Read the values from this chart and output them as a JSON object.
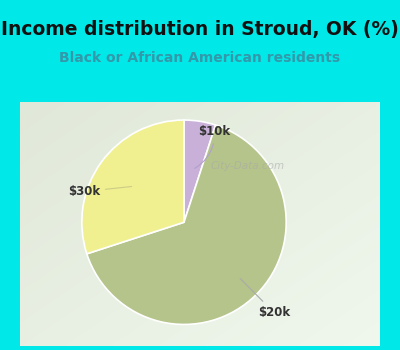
{
  "title": "Income distribution in Stroud, OK (%)",
  "subtitle": "Black or African American residents",
  "slices": [
    {
      "label": "$10k",
      "value": 5,
      "color": "#c9b0d8"
    },
    {
      "label": "$20k",
      "value": 65,
      "color": "#b5c48a"
    },
    {
      "label": "$30k",
      "value": 30,
      "color": "#f0f090"
    }
  ],
  "background_cyan": "#00e8e8",
  "background_chart_tl": "#e8f5f0",
  "background_chart_br": "#d0e8c8",
  "title_color": "#111111",
  "subtitle_color": "#3399aa",
  "title_fontsize": 13.5,
  "subtitle_fontsize": 10,
  "label_fontsize": 8.5,
  "label_color": "#333333",
  "startangle": 90,
  "wedge_edge_color": "white",
  "wedge_linewidth": 1.2,
  "watermark": "City-Data.com"
}
